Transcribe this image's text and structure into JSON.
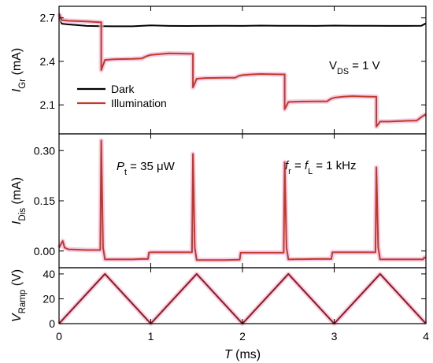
{
  "chart_data": [
    {
      "type": "line",
      "panel": "top",
      "ylabel": "I_Gr (mA)",
      "ylabel_main": "I",
      "ylabel_sub": "Gr",
      "ylabel_unit": " (mA)",
      "ylim": [
        1.9,
        2.78
      ],
      "yticks": [
        2.1,
        2.4,
        2.7
      ],
      "ytick_labels": [
        "2.1",
        "2.4",
        "2.7"
      ],
      "annotation": {
        "main": "V",
        "sub": "DS",
        "rest": " = 1 V"
      },
      "legend": [
        {
          "label": "Dark",
          "color": "#000000"
        },
        {
          "label": "Illumination",
          "color": "#c0392b"
        }
      ],
      "series": [
        {
          "name": "Dark",
          "color": "#000000",
          "points": [
            [
              0,
              2.7
            ],
            [
              0.03,
              2.66
            ],
            [
              0.1,
              2.655
            ],
            [
              0.2,
              2.65
            ],
            [
              0.3,
              2.645
            ],
            [
              0.45,
              2.643
            ],
            [
              0.6,
              2.642
            ],
            [
              0.8,
              2.642
            ],
            [
              1.0,
              2.648
            ],
            [
              1.2,
              2.645
            ],
            [
              1.4,
              2.644
            ],
            [
              1.6,
              2.645
            ],
            [
              1.8,
              2.646
            ],
            [
              2.0,
              2.645
            ],
            [
              2.2,
              2.647
            ],
            [
              2.4,
              2.646
            ],
            [
              2.6,
              2.646
            ],
            [
              2.8,
              2.645
            ],
            [
              3.0,
              2.647
            ],
            [
              3.2,
              2.646
            ],
            [
              3.4,
              2.646
            ],
            [
              3.6,
              2.645
            ],
            [
              3.8,
              2.645
            ],
            [
              3.95,
              2.646
            ],
            [
              4.0,
              2.662
            ]
          ]
        },
        {
          "name": "Illumination",
          "color": "#c0392b",
          "points": [
            [
              0,
              2.73
            ],
            [
              0.03,
              2.685
            ],
            [
              0.1,
              2.68
            ],
            [
              0.3,
              2.675
            ],
            [
              0.44,
              2.67
            ],
            [
              0.46,
              2.67
            ],
            [
              0.46,
              2.34
            ],
            [
              0.5,
              2.41
            ],
            [
              0.6,
              2.415
            ],
            [
              0.8,
              2.417
            ],
            [
              0.9,
              2.42
            ],
            [
              0.95,
              2.435
            ],
            [
              1.0,
              2.445
            ],
            [
              1.1,
              2.45
            ],
            [
              1.2,
              2.455
            ],
            [
              1.3,
              2.454
            ],
            [
              1.45,
              2.452
            ],
            [
              1.46,
              2.452
            ],
            [
              1.46,
              2.22
            ],
            [
              1.5,
              2.28
            ],
            [
              1.6,
              2.285
            ],
            [
              1.8,
              2.287
            ],
            [
              1.92,
              2.287
            ],
            [
              1.96,
              2.3
            ],
            [
              2.0,
              2.305
            ],
            [
              2.1,
              2.31
            ],
            [
              2.2,
              2.313
            ],
            [
              2.3,
              2.312
            ],
            [
              2.45,
              2.31
            ],
            [
              2.46,
              2.31
            ],
            [
              2.46,
              2.07
            ],
            [
              2.5,
              2.12
            ],
            [
              2.6,
              2.122
            ],
            [
              2.8,
              2.124
            ],
            [
              2.92,
              2.124
            ],
            [
              2.96,
              2.14
            ],
            [
              3.0,
              2.15
            ],
            [
              3.1,
              2.157
            ],
            [
              3.2,
              2.16
            ],
            [
              3.3,
              2.158
            ],
            [
              3.44,
              2.156
            ],
            [
              3.46,
              2.156
            ],
            [
              3.46,
              1.95
            ],
            [
              3.5,
              1.985
            ],
            [
              3.6,
              1.985
            ],
            [
              3.8,
              1.99
            ],
            [
              3.9,
              1.992
            ],
            [
              3.96,
              2.02
            ],
            [
              4.0,
              2.035
            ]
          ]
        }
      ]
    },
    {
      "type": "line",
      "panel": "middle",
      "ylabel": "I_Dis (mA)",
      "ylabel_main": "I",
      "ylabel_sub": "Dis",
      "ylabel_unit": " (mA)",
      "ylim": [
        -0.05,
        0.35
      ],
      "yticks": [
        0.0,
        0.15,
        0.3
      ],
      "ytick_labels": [
        "0.00",
        "0.15",
        "0.30"
      ],
      "annotations": [
        {
          "main": "P",
          "sub": "t",
          "rest": " = 35 μW"
        },
        {
          "main": "f",
          "sub": "r",
          "mid": " = ",
          "main2": "f",
          "sub2": "L",
          "rest": " = 1 kHz"
        }
      ],
      "series": [
        {
          "name": "Illumination",
          "color": "#c0392b",
          "points": [
            [
              0,
              0.01
            ],
            [
              0.02,
              0.02
            ],
            [
              0.04,
              0.03
            ],
            [
              0.06,
              0.01
            ],
            [
              0.1,
              0.005
            ],
            [
              0.3,
              0.003
            ],
            [
              0.45,
              0.003
            ],
            [
              0.46,
              0.33
            ],
            [
              0.48,
              0.01
            ],
            [
              0.5,
              -0.025
            ],
            [
              0.8,
              -0.025
            ],
            [
              0.9,
              -0.024
            ],
            [
              0.97,
              -0.024
            ],
            [
              0.98,
              -0.005
            ],
            [
              1.0,
              -0.004
            ],
            [
              1.3,
              -0.004
            ],
            [
              1.45,
              -0.004
            ],
            [
              1.46,
              0.29
            ],
            [
              1.48,
              0.01
            ],
            [
              1.5,
              -0.027
            ],
            [
              1.8,
              -0.027
            ],
            [
              1.97,
              -0.026
            ],
            [
              1.98,
              -0.005
            ],
            [
              2.0,
              -0.005
            ],
            [
              2.3,
              -0.005
            ],
            [
              2.45,
              -0.005
            ],
            [
              2.46,
              0.265
            ],
            [
              2.48,
              0.01
            ],
            [
              2.5,
              -0.025
            ],
            [
              2.8,
              -0.024
            ],
            [
              2.97,
              -0.024
            ],
            [
              2.98,
              -0.004
            ],
            [
              3.0,
              -0.004
            ],
            [
              3.3,
              -0.004
            ],
            [
              3.45,
              -0.004
            ],
            [
              3.46,
              0.25
            ],
            [
              3.48,
              0.01
            ],
            [
              3.5,
              -0.025
            ],
            [
              3.8,
              -0.025
            ],
            [
              3.97,
              -0.025
            ],
            [
              3.98,
              -0.02
            ],
            [
              4.0,
              -0.02
            ]
          ]
        }
      ]
    },
    {
      "type": "line",
      "panel": "bottom",
      "ylabel": "V_Ramp (V)",
      "ylabel_main": "V",
      "ylabel_sub": "Ramp",
      "ylabel_unit": " (V)",
      "xlabel": "T (ms)",
      "xlabel_main": "T",
      "xlabel_unit": " (ms)",
      "xlim": [
        0,
        4
      ],
      "xticks": [
        0,
        1,
        2,
        3,
        4
      ],
      "xtick_labels": [
        "0",
        "1",
        "2",
        "3",
        "4"
      ],
      "ylim": [
        0,
        45
      ],
      "yticks": [
        0,
        20,
        40
      ],
      "ytick_labels": [
        "0",
        "20",
        "40"
      ],
      "series": [
        {
          "name": "V_Ramp",
          "color": "#8b1a1a",
          "points": [
            [
              0,
              0
            ],
            [
              0.5,
              40
            ],
            [
              1.0,
              0
            ],
            [
              1.5,
              40
            ],
            [
              2.0,
              0
            ],
            [
              2.5,
              40
            ],
            [
              3.0,
              0
            ],
            [
              3.5,
              40
            ],
            [
              4.0,
              0
            ]
          ]
        }
      ]
    }
  ]
}
